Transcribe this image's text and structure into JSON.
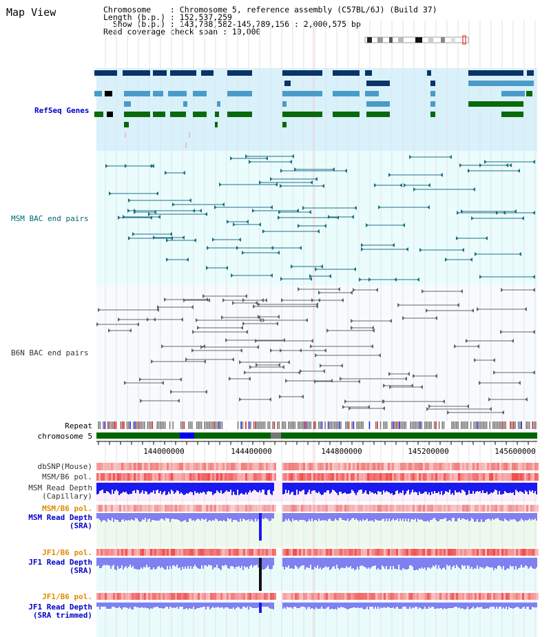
{
  "view_title": "Map View",
  "info": {
    "chromosome_line": "Chromosome    : Chromosome 5, reference assembly (C57BL/6J) (Build 37)",
    "length_line": "Length (b.p.) : 152,537,259",
    "show_line": "  Show (b.p.) : 143,788,582-145,789,156 : 2,000,575 bp",
    "span_line": "Read coverage check span : 10,000"
  },
  "tracks": {
    "refseq": "RefSeq Genes",
    "msm_bac": "MSM BAC end pairs",
    "b6n_bac": "B6N BAC end pairs",
    "repeat": "Repeat",
    "chromosome": "chromosome 5",
    "dbsnp": "dbSNP(Mouse)",
    "msm_b6_pol_1": "MSM/B6 pol.",
    "msm_read_depth_cap": "MSM Read Depth\n(Capillary)",
    "msm_b6_pol_2": "MSM/B6 pol.",
    "msm_read_depth_sra": "MSM Read Depth\n(SRA)",
    "jf1_b6_pol_1": "JF1/B6 pol.",
    "jf1_read_depth_sra": "JF1 Read Depth\n(SRA)",
    "jf1_b6_pol_2": "JF1/B6 pol.",
    "jf1_read_depth_trim": "JF1 Read Depth\n(SRA trimmed)"
  },
  "axis": {
    "ticks": [
      "144000000",
      "144400000",
      "144800000",
      "145200000",
      "145600000"
    ]
  },
  "colors": {
    "refseq_bg": "#d9f1fb",
    "bac_bg": "#eafcfc",
    "gene_dark": "#0a3366",
    "gene_mid": "#4a9bc8",
    "gene_green": "#0a6a0a",
    "bac_teal": "#1f6f84",
    "bac_gray": "#666666",
    "chrom_green": "#006400",
    "chrom_blue": "#0000ee",
    "depth_blue": "#1a1aee",
    "depth_light": "#8080f0",
    "pol_red": "#f04040"
  }
}
